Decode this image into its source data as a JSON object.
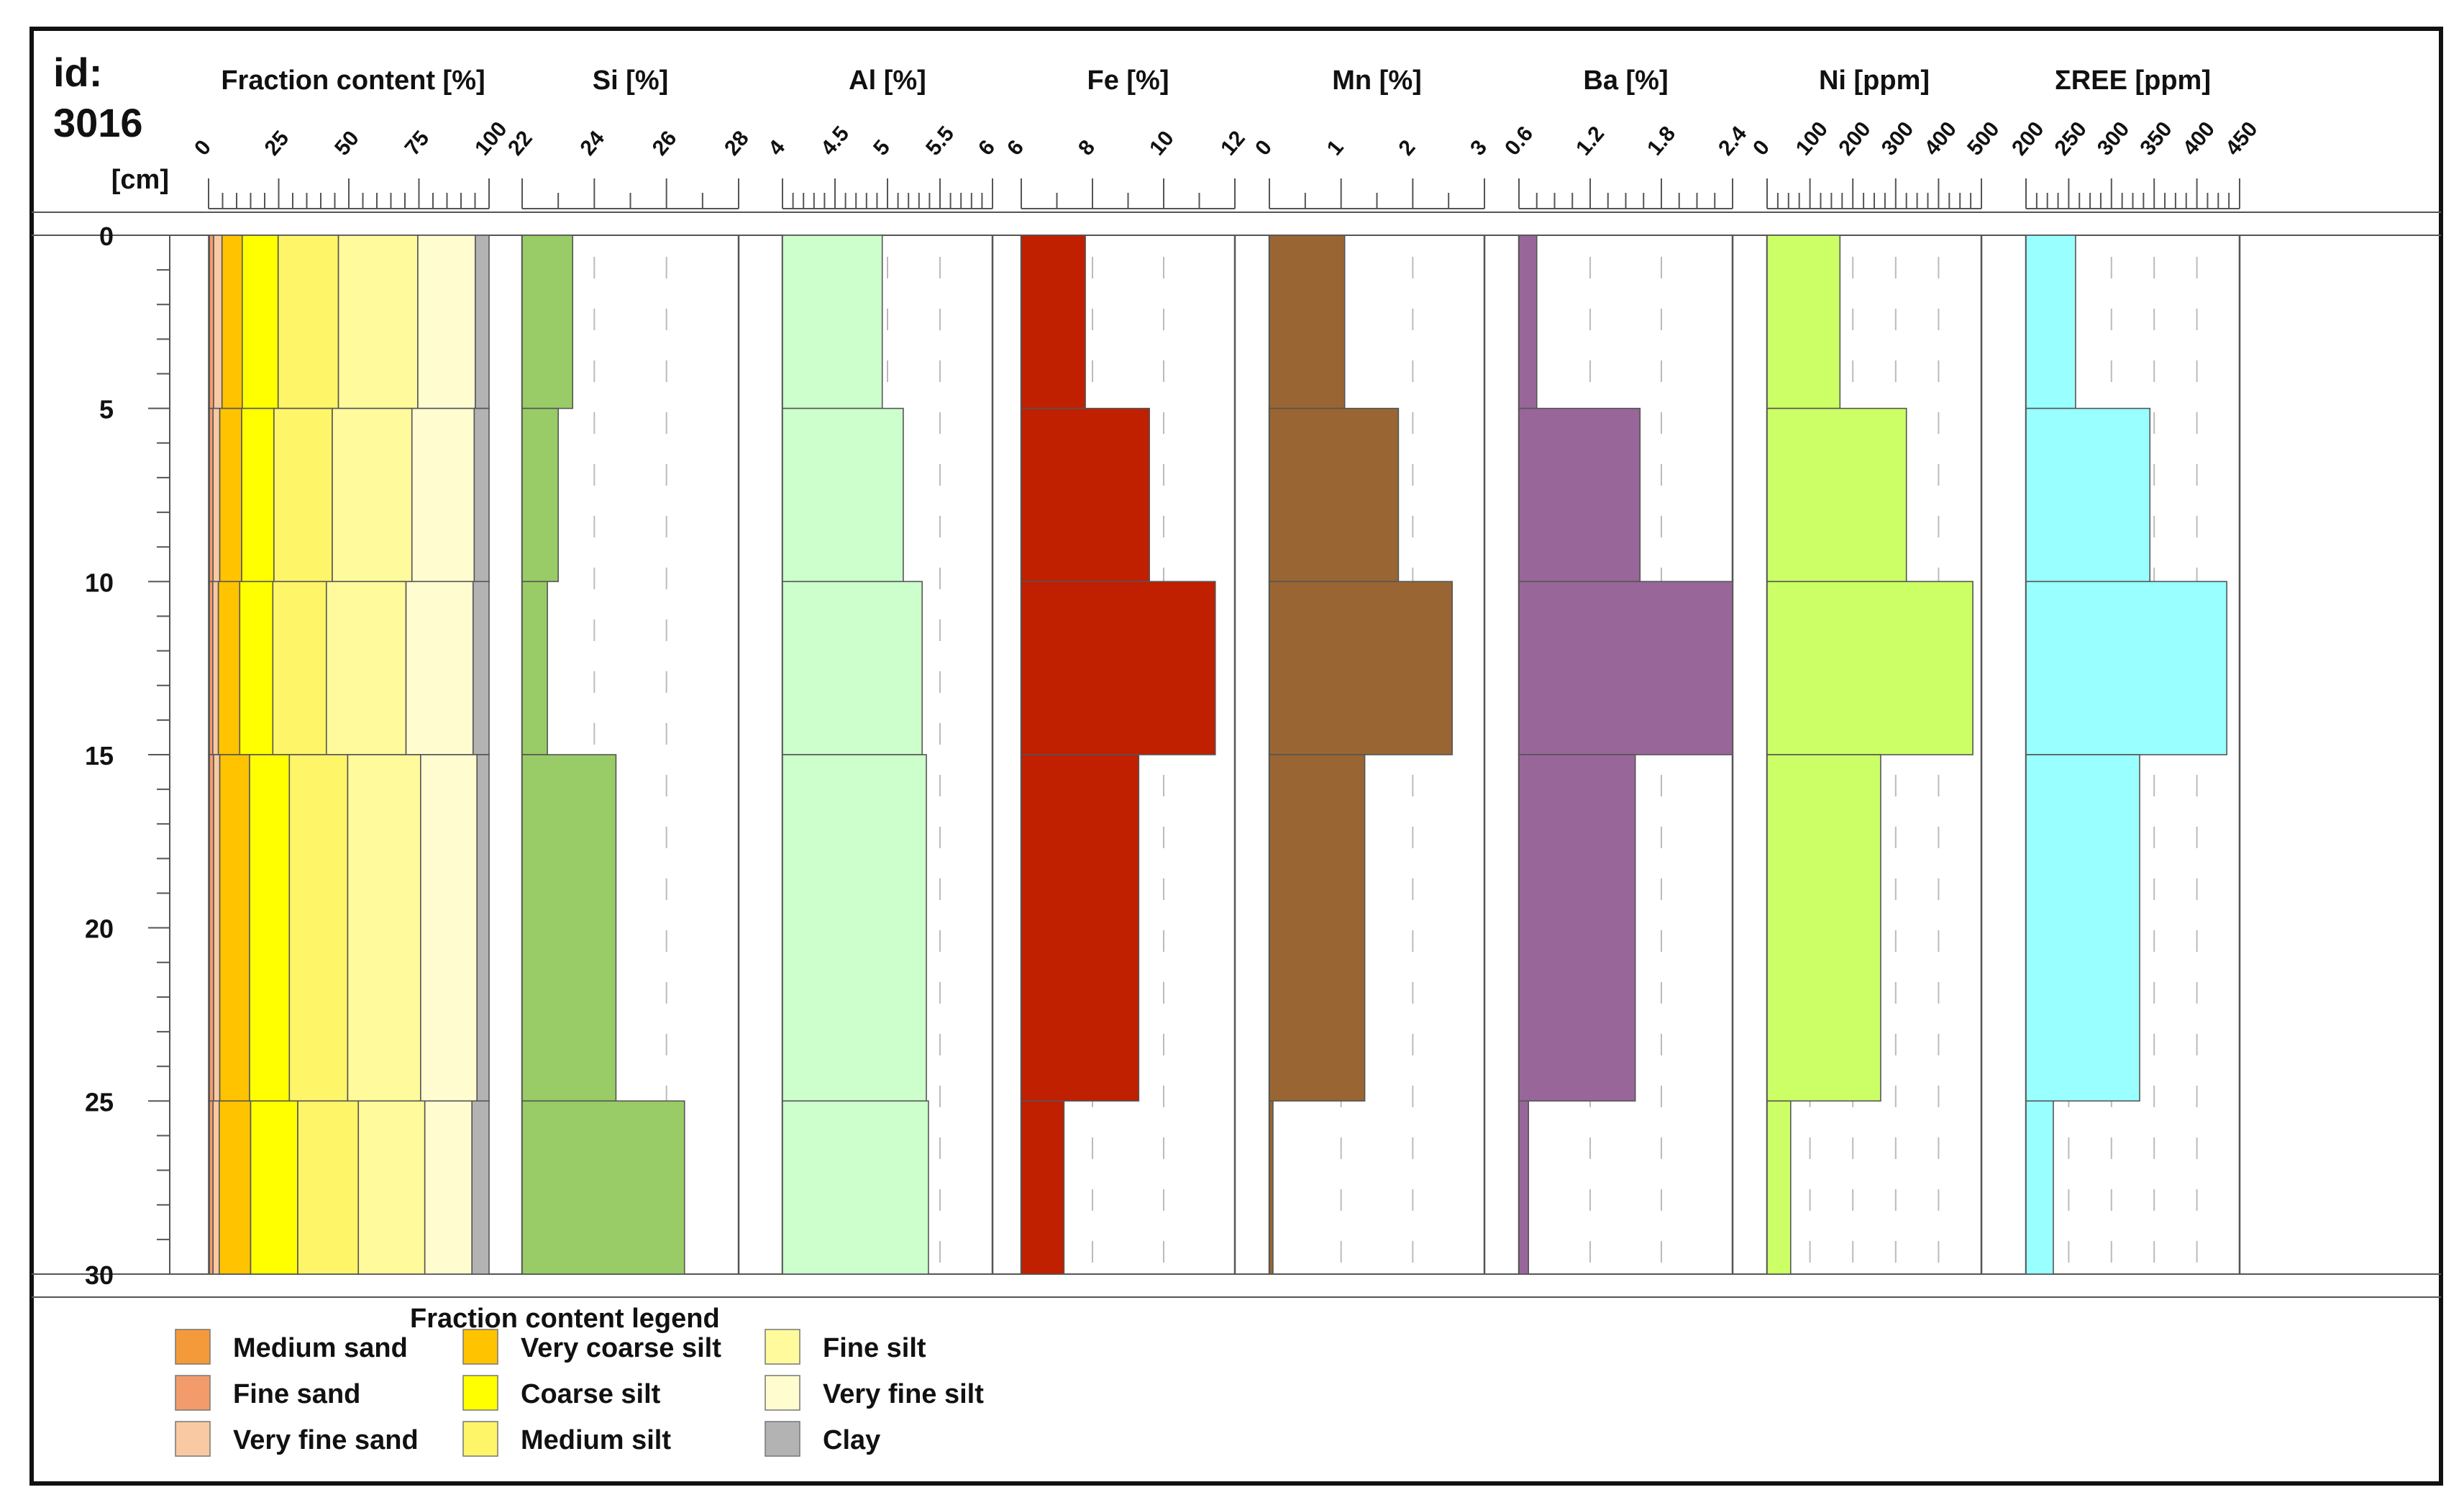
{
  "chart_data": {
    "type": "bar",
    "id_label": "id:",
    "id_value": "3016",
    "depth_unit": "[cm]",
    "depth_ticks": [
      "0",
      "5",
      "10",
      "15",
      "20",
      "25",
      "30"
    ],
    "depth_intervals": [
      [
        0,
        5
      ],
      [
        5,
        10
      ],
      [
        10,
        15
      ],
      [
        15,
        25
      ],
      [
        25,
        30
      ]
    ],
    "panels": [
      {
        "key": "fraction",
        "title": "Fraction content [%]",
        "kind": "stacked",
        "range": [
          0,
          100
        ],
        "tick_values": [
          0,
          25,
          50,
          75,
          100
        ],
        "tick_labels": [
          "0",
          "25",
          "50",
          "75",
          "100"
        ],
        "minor_step": 5,
        "components": [
          {
            "name": "Medium sand",
            "color": "#f59a3a",
            "values": [
              0.3,
              0.3,
              0.3,
              0.3,
              0.3
            ]
          },
          {
            "name": "Fine sand",
            "color": "#f49b6b",
            "values": [
              1.5,
              1.3,
              1.2,
              1.5,
              1.3
            ]
          },
          {
            "name": "Very fine sand",
            "color": "#f9c9a3",
            "values": [
              3,
              2.4,
              2,
              2.2,
              2.2
            ]
          },
          {
            "name": "Very coarse silt",
            "color": "#ffc300",
            "values": [
              7.2,
              7.8,
              7.6,
              10.6,
              11.2
            ]
          },
          {
            "name": "Coarse silt",
            "color": "#ffff00",
            "values": [
              12.8,
              11.5,
              11.8,
              14.2,
              16.8
            ]
          },
          {
            "name": "Medium silt",
            "color": "#fff569",
            "values": [
              21.5,
              20.8,
              19.1,
              20.8,
              21.6
            ]
          },
          {
            "name": "Fine silt",
            "color": "#fffa9c",
            "values": [
              28.3,
              28.4,
              28.4,
              26,
              23.7
            ]
          },
          {
            "name": "Very fine silt",
            "color": "#fffdd0",
            "values": [
              20.5,
              22.2,
              23.9,
              20.1,
              16.8
            ]
          },
          {
            "name": "Clay",
            "color": "#b3b3b3",
            "values": [
              4.9,
              5.3,
              5.7,
              4.3,
              6.1
            ]
          }
        ]
      },
      {
        "key": "si",
        "title": "Si [%]",
        "kind": "bars",
        "color": "#99cc66",
        "range": [
          22,
          28
        ],
        "tick_values": [
          22,
          24,
          26,
          28
        ],
        "tick_labels": [
          "22",
          "24",
          "26",
          "28"
        ],
        "minor_step": 1,
        "grid": [
          24,
          26
        ],
        "values": [
          23.4,
          23,
          22.7,
          24.6,
          26.5
        ]
      },
      {
        "key": "al",
        "title": "Al [%]",
        "kind": "bars",
        "color": "#ccffcc",
        "range": [
          4,
          6
        ],
        "tick_values": [
          4,
          4.5,
          5,
          5.5,
          6
        ],
        "tick_labels": [
          "4",
          "4.5",
          "5",
          "5.5",
          "6"
        ],
        "minor_step": 0.1,
        "grid": [
          4.5,
          5,
          5.5
        ],
        "values": [
          4.95,
          5.15,
          5.33,
          5.37,
          5.39
        ]
      },
      {
        "key": "fe",
        "title": "Fe [%]",
        "kind": "bars",
        "color": "#c01f00",
        "range": [
          6,
          12
        ],
        "tick_values": [
          6,
          8,
          10,
          12
        ],
        "tick_labels": [
          "6",
          "8",
          "10",
          "12"
        ],
        "minor_step": 1,
        "grid": [
          8,
          10
        ],
        "values": [
          7.8,
          9.6,
          11.45,
          9.3,
          7.2
        ]
      },
      {
        "key": "mn",
        "title": "Mn [%]",
        "kind": "bars",
        "color": "#996633",
        "range": [
          0,
          3
        ],
        "tick_values": [
          0,
          1,
          2,
          3
        ],
        "tick_labels": [
          "0",
          "1",
          "2",
          "3"
        ],
        "minor_step": 0.5,
        "grid": [
          1,
          2
        ],
        "values": [
          1.05,
          1.8,
          2.55,
          1.33,
          0.05
        ]
      },
      {
        "key": "ba",
        "title": "Ba [%]",
        "kind": "bars",
        "color": "#996699",
        "range": [
          0.6,
          2.4
        ],
        "tick_values": [
          0.6,
          1.2,
          1.8,
          2.4
        ],
        "tick_labels": [
          "0.6",
          "1.2",
          "1.8",
          "2.4"
        ],
        "minor_step": 0.15,
        "grid": [
          1.2,
          1.8
        ],
        "values": [
          0.75,
          1.62,
          2.4,
          1.58,
          0.68
        ]
      },
      {
        "key": "ni",
        "title": "Ni [ppm]",
        "kind": "bars",
        "color": "#ccff66",
        "range": [
          0,
          500
        ],
        "tick_values": [
          0,
          100,
          200,
          300,
          400,
          500
        ],
        "tick_labels": [
          "0",
          "100",
          "200",
          "300",
          "400",
          "500"
        ],
        "minor_step": 25,
        "grid": [
          100,
          200,
          300,
          400
        ],
        "values": [
          170,
          325,
          480,
          265,
          55
        ]
      },
      {
        "key": "ree",
        "title": "ΣREE [ppm]",
        "kind": "bars",
        "color": "#99ffff",
        "range": [
          200,
          450
        ],
        "tick_values": [
          200,
          250,
          300,
          350,
          400,
          450
        ],
        "tick_labels": [
          "200",
          "250",
          "300",
          "350",
          "400",
          "450"
        ],
        "minor_step": 12.5,
        "grid": [
          250,
          300,
          350,
          400
        ],
        "values": [
          258,
          345,
          435,
          333,
          232
        ]
      }
    ],
    "legend": {
      "title": "Fraction content legend",
      "order": [
        "Medium sand",
        "Fine sand",
        "Very fine sand",
        "Very coarse silt",
        "Coarse silt",
        "Medium silt",
        "Fine silt",
        "Very fine silt",
        "Clay"
      ]
    }
  }
}
